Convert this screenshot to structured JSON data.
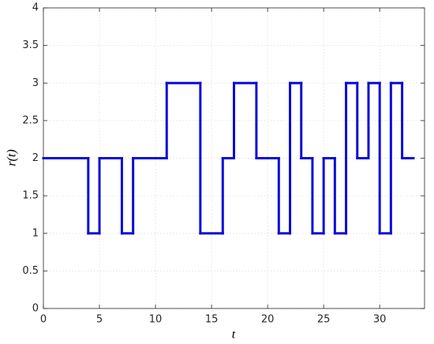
{
  "chart_data": {
    "type": "stairs",
    "x_label": "t",
    "y_label": "r(t)",
    "x": [
      0,
      4,
      5,
      7,
      8,
      11,
      14,
      16,
      17,
      19,
      21,
      22,
      23,
      24,
      25,
      26,
      27,
      28,
      29,
      30,
      31,
      32,
      33
    ],
    "values": [
      2,
      1,
      2,
      1,
      2,
      3,
      1,
      2,
      3,
      2,
      1,
      3,
      2,
      1,
      2,
      1,
      3,
      2,
      3,
      1,
      3,
      2,
      2
    ],
    "color": "#0a0ad8",
    "xlim": [
      0,
      34
    ],
    "xticks": [
      0,
      5,
      10,
      15,
      20,
      25,
      30
    ],
    "ylim": [
      0,
      4
    ],
    "yticks": [
      0,
      0.5,
      1,
      1.5,
      2,
      2.5,
      3,
      3.5,
      4
    ],
    "grid": true
  }
}
